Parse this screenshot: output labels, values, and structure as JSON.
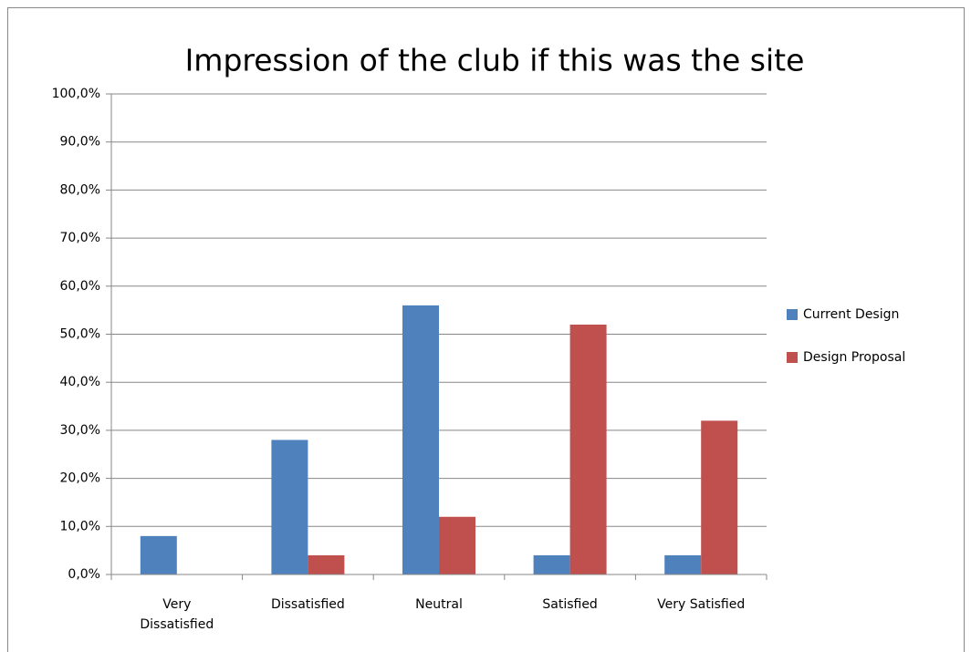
{
  "chart_data": {
    "type": "bar",
    "title": "Impression of the club if this was the site",
    "categories": [
      "Very Dissatisfied",
      "Dissatisfied",
      "Neutral",
      "Satisfied",
      "Very Satisfied"
    ],
    "series": [
      {
        "name": "Current Design",
        "color": "#4f81bd",
        "values": [
          8,
          28,
          56,
          4,
          4
        ]
      },
      {
        "name": "Design Proposal",
        "color": "#c0504d",
        "values": [
          0,
          4,
          12,
          52,
          32
        ]
      }
    ],
    "ylim": [
      0,
      100
    ],
    "yticks": [
      {
        "value": 0,
        "label": "0,0%"
      },
      {
        "value": 10,
        "label": "10,0%"
      },
      {
        "value": 20,
        "label": "20,0%"
      },
      {
        "value": 30,
        "label": "30,0%"
      },
      {
        "value": 40,
        "label": "40,0%"
      },
      {
        "value": 50,
        "label": "50,0%"
      },
      {
        "value": 60,
        "label": "60,0%"
      },
      {
        "value": 70,
        "label": "70,0%"
      },
      {
        "value": 80,
        "label": "80,0%"
      },
      {
        "value": 90,
        "label": "90,0%"
      },
      {
        "value": 100,
        "label": "100,0%"
      }
    ],
    "grid": true,
    "legend": "right"
  }
}
